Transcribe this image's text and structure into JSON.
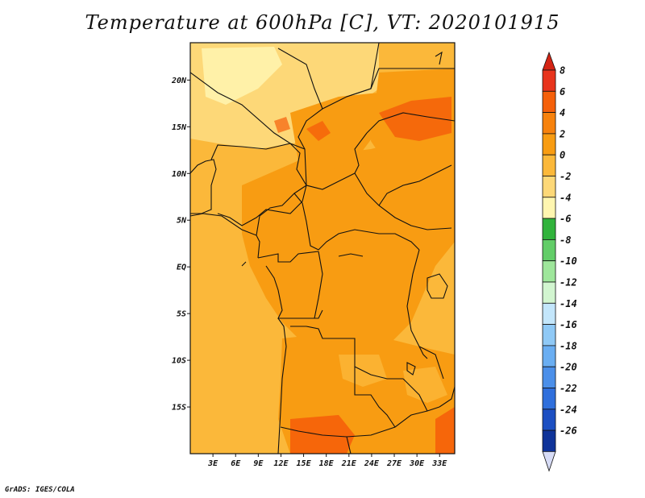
{
  "title": "Temperature at 600hPa [C], VT: 2020101915",
  "credit": "GrADS: IGES/COLA",
  "map": {
    "lon_range": [
      0,
      35
    ],
    "lat_range": [
      -20,
      24
    ],
    "lat_ticks": [
      {
        "label": "20N",
        "lat": 20
      },
      {
        "label": "15N",
        "lat": 15
      },
      {
        "label": "10N",
        "lat": 10
      },
      {
        "label": "5N",
        "lat": 5
      },
      {
        "label": "EQ",
        "lat": 0
      },
      {
        "label": "5S",
        "lat": -5
      },
      {
        "label": "10S",
        "lat": -10
      },
      {
        "label": "15S",
        "lat": -15
      }
    ],
    "lon_ticks": [
      {
        "label": "3E",
        "lon": 3
      },
      {
        "label": "6E",
        "lon": 6
      },
      {
        "label": "9E",
        "lon": 9
      },
      {
        "label": "12E",
        "lon": 12
      },
      {
        "label": "15E",
        "lon": 15
      },
      {
        "label": "18E",
        "lon": 18
      },
      {
        "label": "21E",
        "lon": 21
      },
      {
        "label": "24E",
        "lon": 24
      },
      {
        "label": "27E",
        "lon": 27
      },
      {
        "label": "30E",
        "lon": 30
      },
      {
        "label": "33E",
        "lon": 33
      }
    ]
  },
  "colorbar": {
    "labels": [
      "8",
      "6",
      "4",
      "2",
      "0",
      "-2",
      "-4",
      "-6",
      "-8",
      "-10",
      "-12",
      "-14",
      "-16",
      "-18",
      "-20",
      "-22",
      "-24",
      "-26"
    ],
    "colors": [
      "#e8341c",
      "#f5600a",
      "#f7820d",
      "#f89c12",
      "#fbb83a",
      "#fdd878",
      "#fff6b0",
      "#31b33c",
      "#62cd68",
      "#9ee69b",
      "#d2f5d0",
      "#c3e6fb",
      "#8fc9f6",
      "#6aaef2",
      "#4b8fe9",
      "#2f6fdc",
      "#1c4fc2",
      "#0f3399",
      "#081e6b"
    ],
    "top_color": "#d42414",
    "bottom_color": "#d7dcf6"
  }
}
